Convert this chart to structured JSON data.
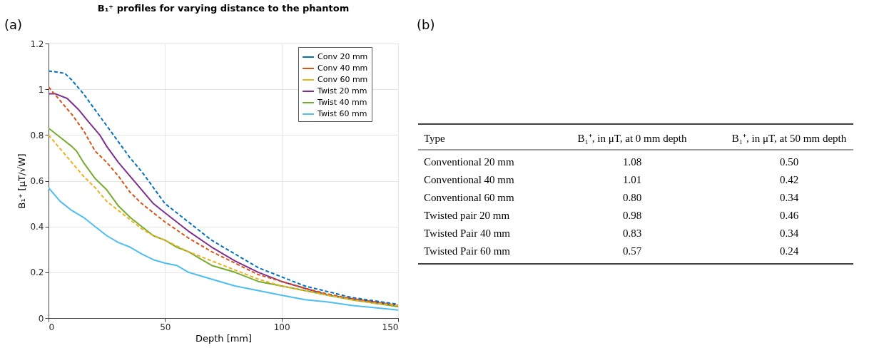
{
  "chart_data": [
    {
      "type": "line",
      "title": "B₁⁺ profiles for varying distance to the phantom",
      "xlabel": "Depth [mm]",
      "ylabel": "B₁⁺ [μT/√W]",
      "annotations": [
        "(a)"
      ],
      "xlim": [
        0,
        150
      ],
      "xticks": [
        0,
        50,
        100,
        150
      ],
      "ylim": [
        0,
        1.2
      ],
      "yticks": [
        0,
        0.2,
        0.4,
        0.6,
        0.8,
        1,
        1.2
      ],
      "grid": true,
      "legend": "top right",
      "series": [
        {
          "name": "Conv 20 mm",
          "color": "#0072bd",
          "line_style": "dashed",
          "x": [
            0,
            7,
            10,
            15,
            20,
            25,
            30,
            35,
            40,
            45,
            50,
            60,
            70,
            80,
            90,
            100,
            110,
            120,
            130,
            140,
            150
          ],
          "values": [
            1.08,
            1.07,
            1.04,
            0.98,
            0.91,
            0.84,
            0.77,
            0.7,
            0.64,
            0.57,
            0.5,
            0.42,
            0.34,
            0.28,
            0.22,
            0.18,
            0.14,
            0.115,
            0.09,
            0.075,
            0.06
          ]
        },
        {
          "name": "Conv 40 mm",
          "color": "#d95319",
          "line_style": "dashed",
          "x": [
            0,
            5,
            10,
            15,
            20,
            25,
            30,
            35,
            40,
            45,
            50,
            60,
            70,
            80,
            90,
            100,
            110,
            120,
            130,
            140,
            150
          ],
          "values": [
            1.01,
            0.95,
            0.89,
            0.82,
            0.73,
            0.68,
            0.62,
            0.55,
            0.5,
            0.46,
            0.42,
            0.35,
            0.29,
            0.24,
            0.19,
            0.16,
            0.13,
            0.105,
            0.085,
            0.07,
            0.055
          ]
        },
        {
          "name": "Conv 60 mm",
          "color": "#edb120",
          "line_style": "dashed",
          "x": [
            0,
            5,
            10,
            15,
            20,
            25,
            30,
            35,
            40,
            45,
            50,
            60,
            70,
            80,
            90,
            100,
            110,
            120,
            130,
            140,
            150
          ],
          "values": [
            0.8,
            0.74,
            0.68,
            0.62,
            0.57,
            0.51,
            0.47,
            0.43,
            0.39,
            0.36,
            0.34,
            0.29,
            0.25,
            0.21,
            0.17,
            0.14,
            0.12,
            0.1,
            0.08,
            0.065,
            0.055
          ]
        },
        {
          "name": "Twist 20 mm",
          "color": "#7e2f8e",
          "line_style": "solid",
          "x": [
            0,
            3,
            8,
            13,
            17,
            22,
            25,
            30,
            35,
            40,
            45,
            50,
            55,
            60,
            70,
            80,
            90,
            100,
            110,
            120,
            130,
            140,
            150
          ],
          "values": [
            0.98,
            0.98,
            0.96,
            0.91,
            0.86,
            0.8,
            0.75,
            0.68,
            0.62,
            0.56,
            0.5,
            0.46,
            0.42,
            0.38,
            0.31,
            0.25,
            0.2,
            0.16,
            0.13,
            0.1,
            0.085,
            0.07,
            0.055
          ]
        },
        {
          "name": "Twist 40 mm",
          "color": "#77ac30",
          "line_style": "solid",
          "x": [
            0,
            5,
            10,
            12,
            15,
            20,
            25,
            30,
            35,
            40,
            45,
            50,
            55,
            60,
            65,
            70,
            80,
            90,
            100,
            110,
            120,
            130,
            140,
            150
          ],
          "values": [
            0.83,
            0.79,
            0.75,
            0.73,
            0.68,
            0.61,
            0.56,
            0.49,
            0.44,
            0.4,
            0.36,
            0.34,
            0.31,
            0.29,
            0.26,
            0.23,
            0.2,
            0.16,
            0.14,
            0.12,
            0.1,
            0.08,
            0.065,
            0.05
          ]
        },
        {
          "name": "Twist 60 mm",
          "color": "#4dbeee",
          "line_style": "solid",
          "x": [
            0,
            5,
            10,
            15,
            20,
            25,
            30,
            35,
            40,
            45,
            50,
            55,
            60,
            70,
            80,
            90,
            100,
            110,
            120,
            130,
            140,
            150
          ],
          "values": [
            0.57,
            0.51,
            0.47,
            0.44,
            0.4,
            0.36,
            0.33,
            0.31,
            0.28,
            0.255,
            0.24,
            0.23,
            0.2,
            0.17,
            0.14,
            0.12,
            0.1,
            0.08,
            0.07,
            0.055,
            0.045,
            0.035
          ]
        }
      ]
    },
    {
      "type": "other",
      "annotations": [
        "(b)"
      ],
      "categories": [
        "Type",
        "B₁⁺, in μT, at 0 mm depth",
        "B₁⁺, in μT, at 50 mm depth"
      ],
      "cell_labels": [
        [
          "Conventional 20 mm",
          "1.08",
          "0.50"
        ],
        [
          "Conventional 40 mm",
          "1.01",
          "0.42"
        ],
        [
          "Conventional 60 mm",
          "0.80",
          "0.34"
        ],
        [
          "Twisted pair 20 mm",
          "0.98",
          "0.46"
        ],
        [
          "Twisted Pair 40 mm",
          "0.83",
          "0.34"
        ],
        [
          "Twisted Pair 60 mm",
          "0.57",
          "0.24"
        ]
      ]
    }
  ]
}
